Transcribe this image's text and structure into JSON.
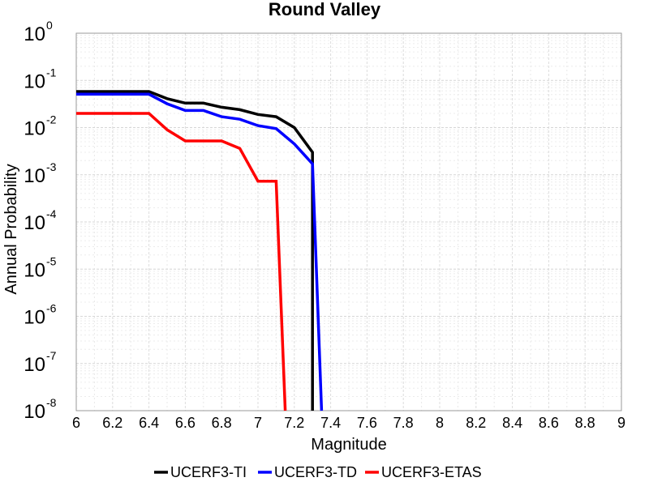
{
  "chart_data": {
    "type": "line",
    "title": "Round Valley",
    "xlabel": "Magnitude",
    "ylabel": "Annual Probability",
    "x_scale": "linear",
    "y_scale": "log",
    "xlim": [
      6,
      9
    ],
    "ylim": [
      1e-08,
      1
    ],
    "x_ticks": [
      "6",
      "6.2",
      "6.4",
      "6.6",
      "6.8",
      "7",
      "7.2",
      "7.4",
      "7.6",
      "7.8",
      "8",
      "8.2",
      "8.4",
      "8.6",
      "8.8",
      "9"
    ],
    "y_ticks": [
      {
        "base": "10",
        "exp": "0"
      },
      {
        "base": "10",
        "exp": "-1"
      },
      {
        "base": "10",
        "exp": "-2"
      },
      {
        "base": "10",
        "exp": "-3"
      },
      {
        "base": "10",
        "exp": "-4"
      },
      {
        "base": "10",
        "exp": "-5"
      },
      {
        "base": "10",
        "exp": "-6"
      },
      {
        "base": "10",
        "exp": "-7"
      },
      {
        "base": "10",
        "exp": "-8"
      }
    ],
    "grid": true,
    "legend_position": "bottom",
    "series": [
      {
        "name": "UCERF3-TI",
        "color": "#000000",
        "x": [
          6.0,
          6.1,
          6.2,
          6.3,
          6.4,
          6.5,
          6.6,
          6.7,
          6.8,
          6.9,
          7.0,
          7.1,
          7.2,
          7.3,
          7.3
        ],
        "y": [
          0.058,
          0.058,
          0.058,
          0.058,
          0.058,
          0.041,
          0.033,
          0.033,
          0.027,
          0.024,
          0.019,
          0.017,
          0.01,
          0.003,
          1e-08
        ]
      },
      {
        "name": "UCERF3-TD",
        "color": "#0000ff",
        "x": [
          6.0,
          6.1,
          6.2,
          6.3,
          6.4,
          6.5,
          6.6,
          6.7,
          6.8,
          6.9,
          7.0,
          7.1,
          7.2,
          7.3,
          7.35
        ],
        "y": [
          0.051,
          0.051,
          0.051,
          0.051,
          0.051,
          0.032,
          0.023,
          0.023,
          0.017,
          0.015,
          0.011,
          0.0095,
          0.0045,
          0.0017,
          1e-08
        ]
      },
      {
        "name": "UCERF3-ETAS",
        "color": "#ff0000",
        "x": [
          6.0,
          6.1,
          6.2,
          6.3,
          6.4,
          6.5,
          6.6,
          6.7,
          6.8,
          6.9,
          7.0,
          7.1,
          7.15
        ],
        "y": [
          0.02,
          0.02,
          0.02,
          0.02,
          0.02,
          0.009,
          0.0052,
          0.0052,
          0.0052,
          0.0036,
          0.00073,
          0.00073,
          1e-08
        ]
      }
    ]
  }
}
